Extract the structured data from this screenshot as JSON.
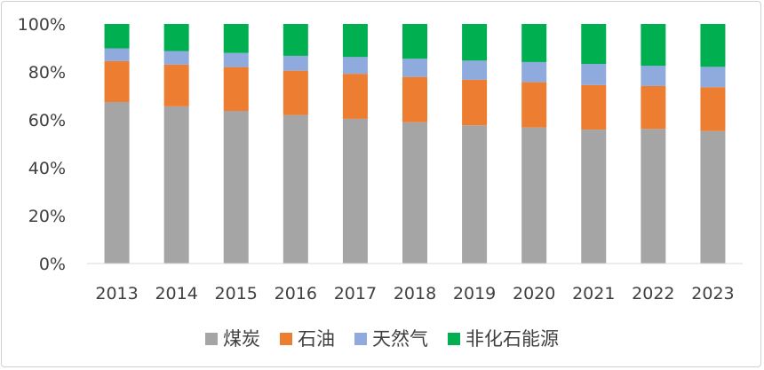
{
  "chart_data": {
    "type": "bar",
    "stacked": true,
    "categories": [
      "2013",
      "2014",
      "2015",
      "2016",
      "2017",
      "2018",
      "2019",
      "2020",
      "2021",
      "2022",
      "2023"
    ],
    "series": [
      {
        "name": "煤炭",
        "color": "#a5a5a5",
        "values": [
          67.4,
          65.6,
          63.7,
          62.0,
          60.4,
          59.0,
          57.7,
          56.8,
          55.9,
          56.2,
          55.3
        ]
      },
      {
        "name": "石油",
        "color": "#ed7d31",
        "values": [
          17.1,
          17.4,
          18.3,
          18.5,
          18.8,
          18.9,
          19.0,
          18.9,
          18.6,
          17.9,
          18.3
        ]
      },
      {
        "name": "天然气",
        "color": "#8faadc",
        "values": [
          5.3,
          5.7,
          5.9,
          6.2,
          7.0,
          7.6,
          8.0,
          8.4,
          8.8,
          8.4,
          8.5
        ]
      },
      {
        "name": "非化石能源",
        "color": "#00b050",
        "values": [
          10.2,
          11.3,
          12.1,
          13.3,
          13.8,
          14.5,
          15.3,
          15.9,
          16.7,
          17.5,
          17.9
        ]
      }
    ],
    "y_ticks": [
      "0%",
      "20%",
      "40%",
      "60%",
      "80%",
      "100%"
    ],
    "ylim": [
      0,
      100
    ],
    "grid": false,
    "legend_position": "bottom"
  }
}
